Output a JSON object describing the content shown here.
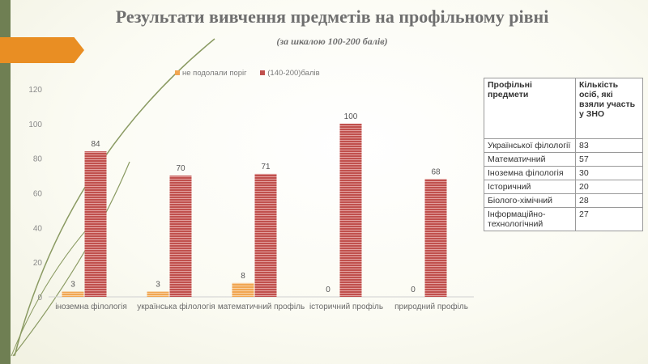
{
  "slide": {
    "title": "Результати вивчення предметів на  профільному рівні",
    "subtitle": "(за шкалою 100-200 балів)"
  },
  "chart_data": {
    "type": "bar",
    "categories": [
      "іноземна філологія",
      "українська філологія",
      "математичний профіль",
      "історичний профіль",
      "природний профіль"
    ],
    "series": [
      {
        "name": "не подолали поріг",
        "values": [
          3,
          3,
          8,
          0,
          0
        ],
        "color": "#f1a652"
      },
      {
        "name": "(140-200)балів",
        "values": [
          84,
          70,
          71,
          100,
          68
        ],
        "color": "#c0504d"
      }
    ],
    "ylim": [
      0,
      120
    ],
    "yticks": [
      0,
      20,
      40,
      60,
      80,
      100,
      120
    ],
    "legend_position": "top",
    "grid": false
  },
  "table": {
    "headers": [
      "Профільні предмети",
      "Кількість осіб, які взяли участь у ЗНО"
    ],
    "rows": [
      [
        "Української філології",
        "83"
      ],
      [
        "Математичний",
        "57"
      ],
      [
        "Іноземна філологія",
        "30"
      ],
      [
        "Історичний",
        "20"
      ],
      [
        "Біолого-хімічний",
        "28"
      ],
      [
        "Інформаційно-технологічний",
        "27"
      ]
    ]
  }
}
